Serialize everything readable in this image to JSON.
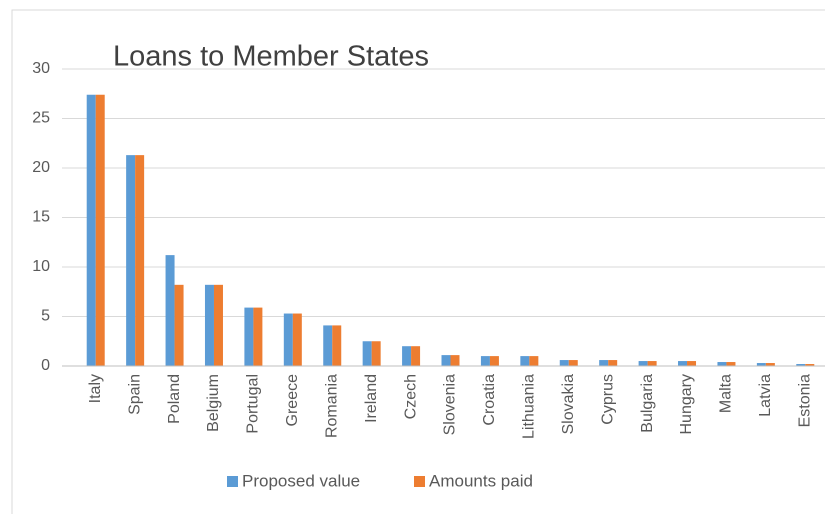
{
  "chart_data": {
    "type": "bar",
    "title": "Loans to Member States",
    "categories": [
      "Italy",
      "Spain",
      "Poland",
      "Belgium",
      "Portugal",
      "Greece",
      "Romania",
      "Ireland",
      "Czech",
      "Slovenia",
      "Croatia",
      "Lithuania",
      "Slovakia",
      "Cyprus",
      "Bulgaria",
      "Hungary",
      "Malta",
      "Latvia",
      "Estonia"
    ],
    "series": [
      {
        "name": "Proposed value",
        "color": "#5b9bd5",
        "values": [
          27.4,
          21.3,
          11.2,
          8.2,
          5.9,
          5.3,
          4.1,
          2.5,
          2.0,
          1.1,
          1.0,
          1.0,
          0.6,
          0.6,
          0.5,
          0.5,
          0.4,
          0.3,
          0.2
        ]
      },
      {
        "name": "Amounts paid",
        "color": "#ed7d31",
        "values": [
          27.4,
          21.3,
          8.2,
          8.2,
          5.9,
          5.3,
          4.1,
          2.5,
          2.0,
          1.1,
          1.0,
          1.0,
          0.6,
          0.6,
          0.5,
          0.5,
          0.4,
          0.3,
          0.2
        ]
      }
    ],
    "ylim": [
      0,
      30
    ],
    "yticks": [
      0,
      5,
      10,
      15,
      20,
      25,
      30
    ],
    "grid": true,
    "legend": "bottom"
  }
}
